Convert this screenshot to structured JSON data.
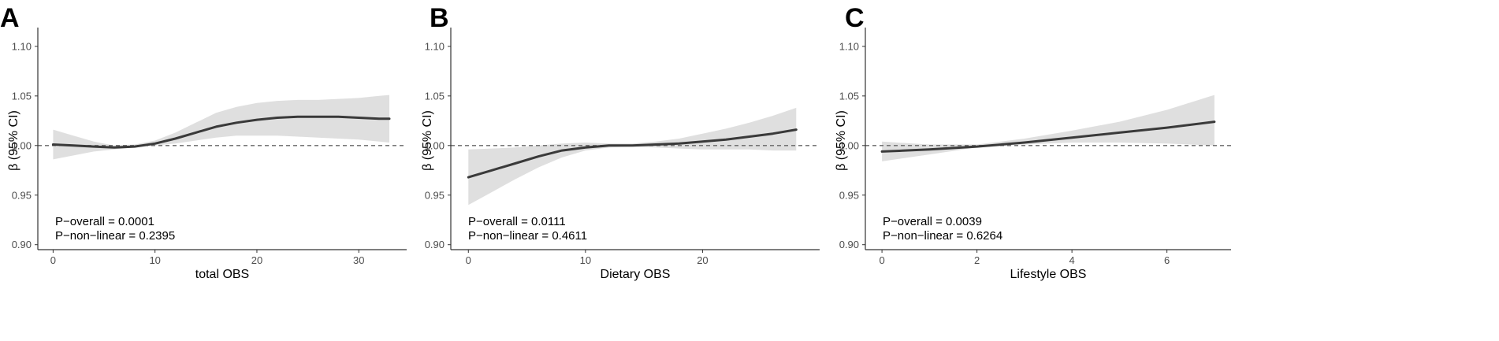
{
  "chart_data": [
    {
      "type": "line",
      "panel_label": "A",
      "xlabel": "total OBS",
      "ylabel": "β (95% CI)",
      "xlim": [
        -1.5,
        34.7
      ],
      "ylim": [
        0.895,
        1.115
      ],
      "xticks": [
        0,
        10,
        20,
        30
      ],
      "yticks": [
        "0.90",
        "0.95",
        "1.00",
        "1.05",
        "1.10"
      ],
      "reference_line": 1.0,
      "annotations": [
        "P−overall = 0.0001",
        "P−non−linear = 0.2395"
      ],
      "x": [
        0,
        2,
        4,
        6,
        8,
        10,
        12,
        14,
        16,
        18,
        20,
        22,
        24,
        26,
        28,
        30,
        32,
        33
      ],
      "y": [
        1.001,
        1.0,
        0.999,
        0.998,
        0.999,
        1.002,
        1.007,
        1.013,
        1.019,
        1.023,
        1.026,
        1.028,
        1.029,
        1.029,
        1.029,
        1.028,
        1.027,
        1.027
      ],
      "lower": [
        0.986,
        0.99,
        0.994,
        0.996,
        0.998,
        1.0,
        1.002,
        1.005,
        1.008,
        1.01,
        1.01,
        1.01,
        1.009,
        1.008,
        1.007,
        1.006,
        1.004,
        1.003
      ],
      "upper": [
        1.016,
        1.01,
        1.004,
        1.0,
        1.001,
        1.005,
        1.013,
        1.023,
        1.033,
        1.039,
        1.043,
        1.045,
        1.046,
        1.046,
        1.047,
        1.048,
        1.05,
        1.051
      ]
    },
    {
      "type": "line",
      "panel_label": "B",
      "xlabel": "Dietary OBS",
      "ylabel": "β (95% CI)",
      "xlim": [
        -1.5,
        30.0
      ],
      "ylim": [
        0.895,
        1.115
      ],
      "xticks": [
        0,
        10,
        20
      ],
      "yticks": [
        "0.90",
        "0.95",
        "1.00",
        "1.05",
        "1.10"
      ],
      "reference_line": 1.0,
      "annotations": [
        "P−overall = 0.0111",
        "P−non−linear = 0.4611"
      ],
      "x": [
        0,
        2,
        4,
        6,
        8,
        10,
        12,
        14,
        16,
        18,
        20,
        22,
        24,
        26,
        28
      ],
      "y": [
        0.968,
        0.975,
        0.982,
        0.989,
        0.995,
        0.998,
        1.0,
        1.0,
        1.001,
        1.002,
        1.004,
        1.006,
        1.009,
        1.012,
        1.016
      ],
      "lower": [
        0.94,
        0.953,
        0.966,
        0.978,
        0.988,
        0.995,
        0.998,
        0.999,
        0.998,
        0.997,
        0.996,
        0.996,
        0.996,
        0.995,
        0.995
      ],
      "upper": [
        0.996,
        0.997,
        0.998,
        1.0,
        1.002,
        1.003,
        1.002,
        1.002,
        1.004,
        1.007,
        1.012,
        1.017,
        1.023,
        1.03,
        1.038
      ]
    },
    {
      "type": "line",
      "panel_label": "C",
      "xlabel": "Lifestyle OBS",
      "ylabel": "β (95% CI)",
      "xlim": [
        -0.35,
        7.35
      ],
      "ylim": [
        0.895,
        1.115
      ],
      "xticks": [
        0,
        2,
        4,
        6
      ],
      "yticks": [
        "0.90",
        "0.95",
        "1.00",
        "1.05",
        "1.10"
      ],
      "reference_line": 1.0,
      "annotations": [
        "P−overall = 0.0039",
        "P−non−linear = 0.6264"
      ],
      "x": [
        0,
        1,
        2,
        3,
        4,
        5,
        6,
        7
      ],
      "y": [
        0.994,
        0.996,
        0.999,
        1.003,
        1.008,
        1.013,
        1.018,
        1.024
      ],
      "lower": [
        0.984,
        0.991,
        0.998,
        1.001,
        1.003,
        1.003,
        1.002,
        1.0
      ],
      "upper": [
        1.004,
        1.001,
        1.001,
        1.007,
        1.015,
        1.024,
        1.036,
        1.051
      ]
    }
  ]
}
